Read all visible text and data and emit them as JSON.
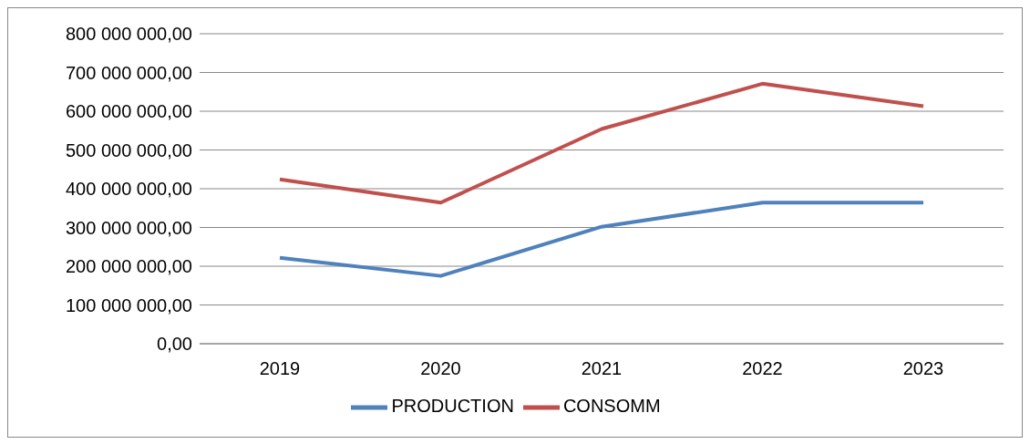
{
  "chart_data": {
    "type": "line",
    "categories": [
      "2019",
      "2020",
      "2021",
      "2022",
      "2023"
    ],
    "series": [
      {
        "name": "PRODUCTION",
        "color": "#4f81bd",
        "values": [
          222000000,
          175000000,
          302000000,
          364000000,
          364000000
        ]
      },
      {
        "name": "CONSOMM",
        "color": "#c0504d",
        "values": [
          424000000,
          364000000,
          554000000,
          671000000,
          613000000
        ]
      }
    ],
    "ylim": [
      0,
      800000000
    ],
    "yticks": [
      {
        "value": 0,
        "label": "0,00"
      },
      {
        "value": 100000000,
        "label": "100 000 000,00"
      },
      {
        "value": 200000000,
        "label": "200 000 000,00"
      },
      {
        "value": 300000000,
        "label": "300 000 000,00"
      },
      {
        "value": 400000000,
        "label": "400 000 000,00"
      },
      {
        "value": 500000000,
        "label": "500 000 000,00"
      },
      {
        "value": 600000000,
        "label": "600 000 000,00"
      },
      {
        "value": 700000000,
        "label": "700 000 000,00"
      },
      {
        "value": 800000000,
        "label": "800 000 000,00"
      }
    ],
    "grid": "y",
    "legend": "bottom",
    "marker": "none",
    "line_style": "solid"
  }
}
